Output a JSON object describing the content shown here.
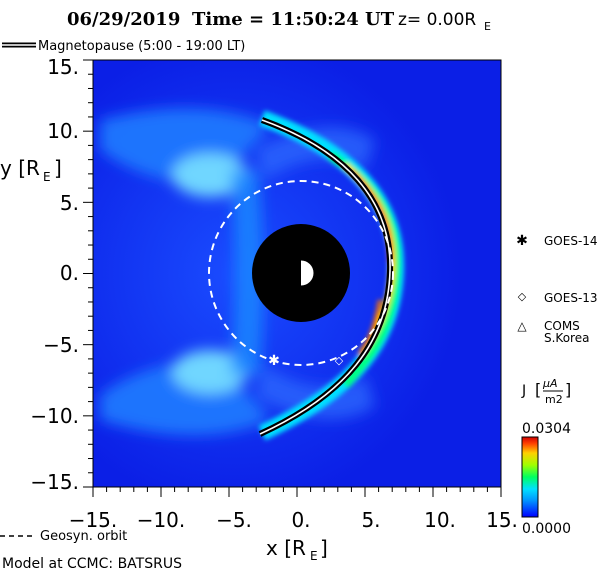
{
  "title": {
    "date": "06/29/2019",
    "time_label": "Time = 11:50:24 UT",
    "z_label": "z= 0.00R",
    "z_sub": "E"
  },
  "legend_top": {
    "label": "Magnetopause (5:00 - 19:00 LT)"
  },
  "legend_bottom": {
    "label": "Geosyn. orbit"
  },
  "footer": {
    "label": "Model at CCMC: BATSRUS"
  },
  "satellites": [
    {
      "name": "GOES-14",
      "symbol": "✱",
      "x": -1.8,
      "y": -6.1
    },
    {
      "name": "GOES-13",
      "symbol": "◇",
      "x": 2.7,
      "y": -6.0
    },
    {
      "name": "COMS",
      "name2": "S.Korea",
      "symbol": "△"
    }
  ],
  "colorbar": {
    "label": "J [μA/m²]",
    "label_main": "J",
    "unit_num": "μA",
    "unit_den": "m2",
    "max": "0.0304",
    "min": "0.0000"
  },
  "chart_data": {
    "type": "heatmap",
    "title": "06/29/2019 Time = 11:50:24 UT z= 0.00RE",
    "xlabel": "x [RE]",
    "ylabel": "y [RE]",
    "xlim": [
      -15,
      15
    ],
    "ylim": [
      -15,
      15
    ],
    "xticks": [
      "−15.",
      "−10.",
      "−5.",
      "0.",
      "5.",
      "10.",
      "15."
    ],
    "yticks": [
      "15.",
      "10.",
      "5.",
      "0.",
      "−5.",
      "−10.",
      "−15."
    ],
    "xtick_values": [
      -15,
      -10,
      -5,
      0,
      5,
      10,
      15
    ],
    "ytick_values": [
      15,
      10,
      5,
      0,
      -5,
      -10,
      -15
    ],
    "value_range": [
      0.0,
      0.0304
    ],
    "magnetopause": {
      "subsolar_x": 6.7,
      "flank_points": [
        [
          -2.8,
          10.8
        ],
        [
          -2.8,
          -11.2
        ]
      ]
    },
    "geosynchronous_radius": 6.6,
    "earth_inner_boundary_radius": 3.5
  }
}
